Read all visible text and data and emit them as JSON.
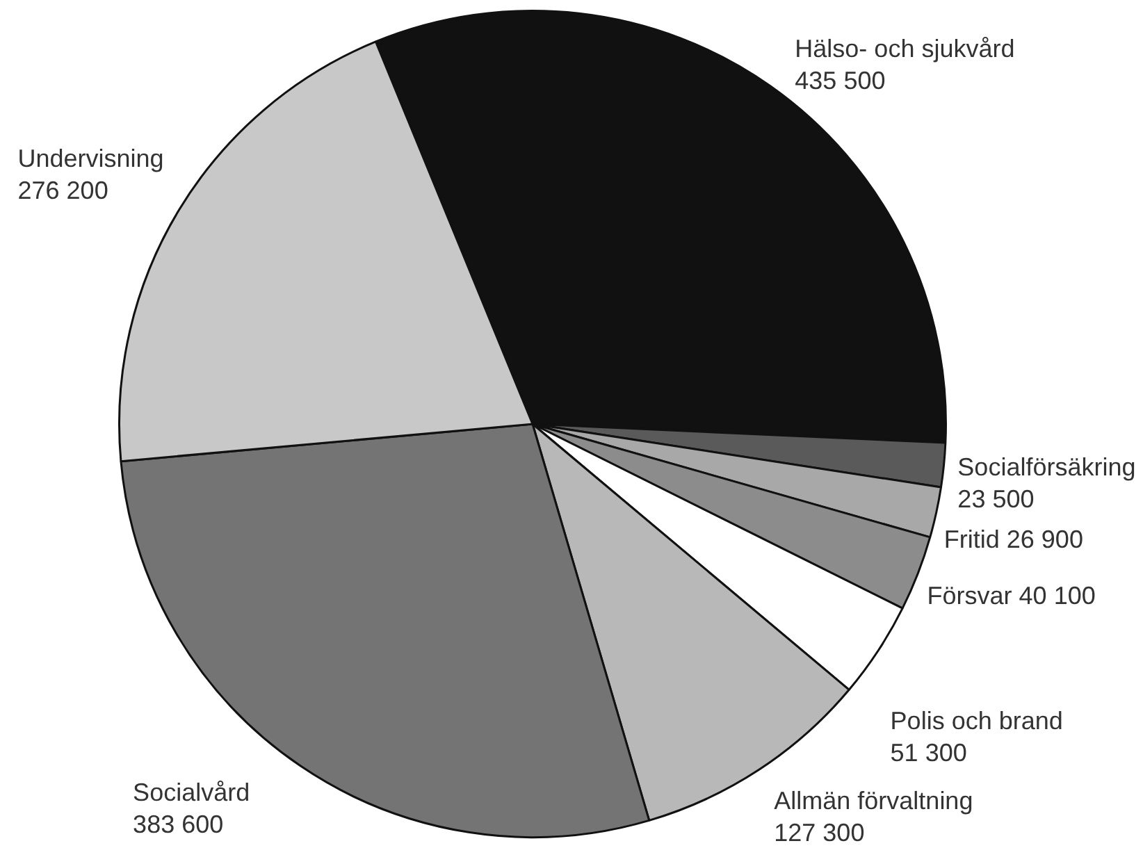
{
  "chart_data": {
    "type": "pie",
    "categories": [
      "Hälso- och sjukvård",
      "Socialförsäkring",
      "Fritid",
      "Försvar",
      "Polis och brand",
      "Allmän förvaltning",
      "Socialvård",
      "Undervisning"
    ],
    "values": [
      435500,
      23500,
      26900,
      40100,
      51300,
      127300,
      383600,
      276200
    ],
    "value_labels": [
      "435 500",
      "23 500",
      "26 900",
      "40 100",
      "51 300",
      "127 300",
      "383 600",
      "276 200"
    ],
    "colors": [
      "#111111",
      "#5a5a5a",
      "#a8a8a8",
      "#8c8c8c",
      "#ffffff",
      "#b8b8b8",
      "#747474",
      "#c8c8c8"
    ]
  }
}
